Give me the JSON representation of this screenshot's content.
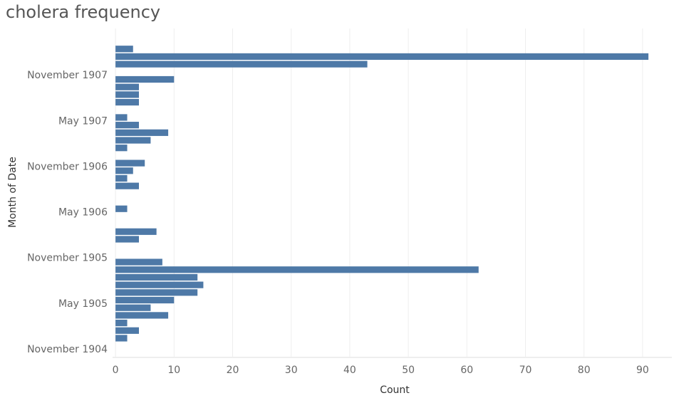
{
  "chart_data": {
    "type": "bar",
    "orientation": "horizontal",
    "title": "cholera frequency",
    "x_label": "Count",
    "y_label": "Month of Date",
    "color": "#4e79a7",
    "categories": [
      "November 1904",
      null,
      null,
      null,
      null,
      null,
      "May 1905",
      null,
      null,
      null,
      null,
      null,
      "November 1905",
      null,
      null,
      null,
      null,
      null,
      "May 1906",
      null,
      null,
      null,
      null,
      null,
      "November 1906",
      null,
      null,
      null,
      null,
      null,
      "May 1907",
      null,
      null,
      null,
      null,
      null,
      "November 1907",
      null,
      null,
      null
    ],
    "values": [
      null,
      2,
      4,
      2,
      9,
      6,
      10,
      14,
      15,
      14,
      62,
      8,
      null,
      null,
      4,
      7,
      null,
      null,
      2,
      null,
      null,
      4,
      2,
      3,
      5,
      null,
      2,
      6,
      9,
      4,
      2,
      null,
      4,
      4,
      4,
      10,
      null,
      43,
      91,
      3
    ],
    "xlim": [
      -0.5,
      95
    ],
    "xticks": [
      0,
      10,
      20,
      30,
      40,
      50,
      60,
      70,
      80,
      90
    ],
    "grid": true
  }
}
